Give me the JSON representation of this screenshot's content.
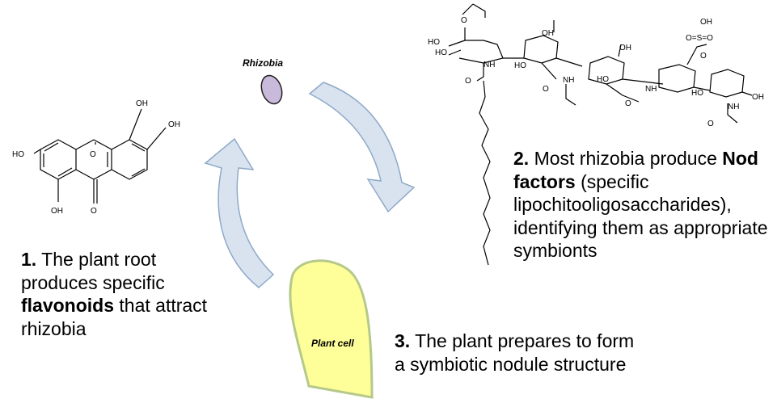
{
  "labels": {
    "rhizobia": "Rhizobia",
    "plant_cell": "Plant cell"
  },
  "steps": [
    {
      "number": "1.",
      "pre": " The plant root produces specific ",
      "bold": "flavonoids",
      "post": " that attract rhizobia"
    },
    {
      "number": "2.",
      "pre": " Most rhizobia produce ",
      "bold": "Nod factors",
      "post": " (specific lipochitooligosaccharides), identifying them as appropriate symbionts"
    },
    {
      "number": "3.",
      "pre": " The plant prepares to form a symbiotic nodule structure",
      "bold": "",
      "post": ""
    }
  ],
  "flavonoid_atoms": {
    "ho_left": "HO",
    "oh_top": "OH",
    "oh_right": "OH",
    "oh_bottom": "OH",
    "o_ketone": "O",
    "o_ring": "O"
  },
  "nod_atoms": {
    "o_acetyl": "O",
    "ho_1": "HO",
    "ho_2": "HO",
    "nh_1": "NH",
    "o_amide": "O",
    "oh_2": "OH",
    "ho_3": "HO",
    "nh_2": "NH",
    "o_2": "O",
    "oh_3": "OH",
    "ho_4": "HO",
    "nh_3": "NH",
    "o_3": "O",
    "oh_sulf": "OH",
    "sulf": "O=S=O",
    "o_sulf": "O",
    "ho_5": "HO",
    "oh_end": "OH",
    "nh_4": "NH",
    "o_4": "O"
  },
  "colors": {
    "arrow_fill": "#d9e3f0",
    "arrow_stroke": "#8ea9c8",
    "rhizobia_fill": "#c9b9da",
    "rhizobia_stroke": "#222222",
    "plant_cell_fill": "#ffff99",
    "plant_cell_stroke": "#b5c98a"
  }
}
